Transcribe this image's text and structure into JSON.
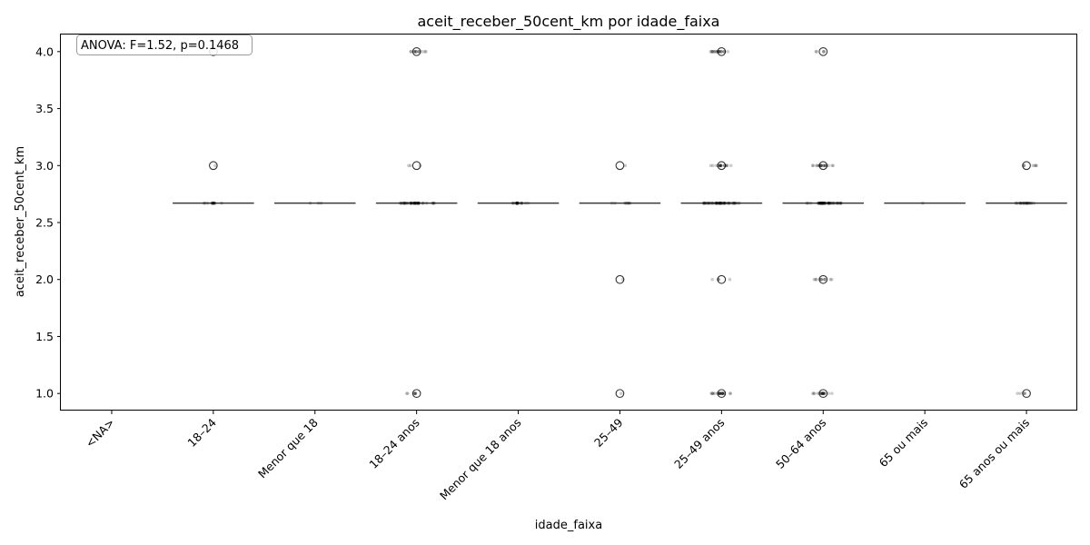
{
  "chart_data": {
    "type": "box",
    "title": "aceit_receber_50cent_km por idade_faixa",
    "xlabel": "idade_faixa",
    "ylabel": "aceit_receber_50cent_km",
    "annotation": "ANOVA: F=1.52, p=0.1468",
    "annotation_position": "top-left",
    "ylim": [
      0.85,
      4.15
    ],
    "yticks": [
      "1.0",
      "1.5",
      "2.0",
      "2.5",
      "3.0",
      "3.5",
      "4.0"
    ],
    "categories": [
      "<NA>",
      "18–24",
      "Menor que 18",
      "18–24 anos",
      "Menor que 18 anos",
      "25–49",
      "25–49 anos",
      "50–64 anos",
      "65 ou mais",
      "65 anos ou mais"
    ],
    "median": 2.67,
    "groups": [
      {
        "category": "<NA>",
        "box": false,
        "outliers": []
      },
      {
        "category": "18–24",
        "box": true,
        "outliers": [
          3.0,
          4.0
        ]
      },
      {
        "category": "Menor que 18",
        "box": true,
        "outliers": []
      },
      {
        "category": "18–24 anos",
        "box": true,
        "outliers": [
          1.0,
          3.0,
          4.0
        ]
      },
      {
        "category": "Menor que 18 anos",
        "box": true,
        "outliers": []
      },
      {
        "category": "25–49",
        "box": true,
        "outliers": [
          1.0,
          2.0,
          3.0
        ]
      },
      {
        "category": "25–49 anos",
        "box": true,
        "outliers": [
          1.0,
          2.0,
          3.0,
          4.0
        ]
      },
      {
        "category": "50–64 anos",
        "box": true,
        "outliers": [
          1.0,
          2.0,
          3.0,
          4.0
        ]
      },
      {
        "category": "65 ou mais",
        "box": true,
        "outliers": []
      },
      {
        "category": "65 anos ou mais",
        "box": true,
        "outliers": [
          1.0,
          3.0
        ]
      }
    ],
    "strip_points": [
      {
        "category": "18–24",
        "y": 2.67,
        "count": 8
      },
      {
        "category": "18–24",
        "y": 3.0,
        "count": 1
      },
      {
        "category": "18–24",
        "y": 4.0,
        "count": 1
      },
      {
        "category": "Menor que 18",
        "y": 2.67,
        "count": 3
      },
      {
        "category": "18–24 anos",
        "y": 2.67,
        "count": 30
      },
      {
        "category": "18–24 anos",
        "y": 4.0,
        "count": 8
      },
      {
        "category": "18–24 anos",
        "y": 3.0,
        "count": 3
      },
      {
        "category": "18–24 anos",
        "y": 1.0,
        "count": 4
      },
      {
        "category": "Menor que 18 anos",
        "y": 2.67,
        "count": 12
      },
      {
        "category": "25–49",
        "y": 2.67,
        "count": 8
      },
      {
        "category": "25–49",
        "y": 3.0,
        "count": 1
      },
      {
        "category": "25–49",
        "y": 2.0,
        "count": 1
      },
      {
        "category": "25–49",
        "y": 1.0,
        "count": 1
      },
      {
        "category": "25–49 anos",
        "y": 2.67,
        "count": 40
      },
      {
        "category": "25–49 anos",
        "y": 4.0,
        "count": 14
      },
      {
        "category": "25–49 anos",
        "y": 3.0,
        "count": 12
      },
      {
        "category": "25–49 anos",
        "y": 2.0,
        "count": 3
      },
      {
        "category": "25–49 anos",
        "y": 1.0,
        "count": 14
      },
      {
        "category": "50–64 anos",
        "y": 2.67,
        "count": 35
      },
      {
        "category": "50–64 anos",
        "y": 4.0,
        "count": 3
      },
      {
        "category": "50–64 anos",
        "y": 3.0,
        "count": 14
      },
      {
        "category": "50–64 anos",
        "y": 2.0,
        "count": 8
      },
      {
        "category": "50–64 anos",
        "y": 1.0,
        "count": 12
      },
      {
        "category": "65 ou mais",
        "y": 2.67,
        "count": 1
      },
      {
        "category": "65 anos ou mais",
        "y": 2.67,
        "count": 15
      },
      {
        "category": "65 anos ou mais",
        "y": 3.0,
        "count": 5
      },
      {
        "category": "65 anos ou mais",
        "y": 1.0,
        "count": 3
      }
    ]
  }
}
